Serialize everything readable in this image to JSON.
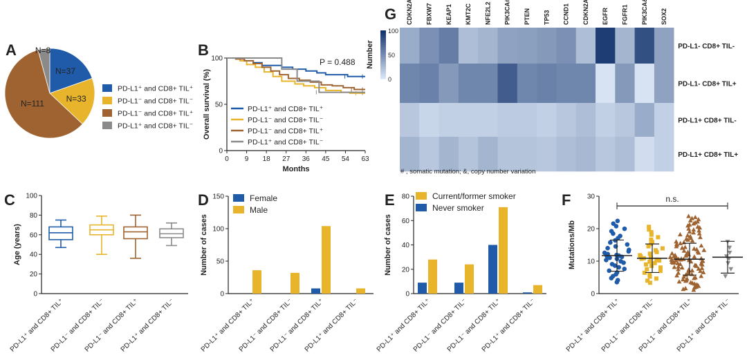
{
  "colors": {
    "blue": "#1f5ba8",
    "yellow": "#e7b42b",
    "brown": "#9e6330",
    "gray": "#8a8a8a"
  },
  "groups": [
    "PD-L1⁺ and CD8+ TIL⁺",
    "PD-L1⁻ and CD8+ TIL⁻",
    "PD-L1⁻ and CD8+ TIL⁺",
    "PD-L1⁺ and CD8+ TIL⁻"
  ],
  "chart_data": [
    {
      "id": "A",
      "type": "pie",
      "label": "A",
      "slices": [
        {
          "name": "PD-L1⁺ and CD8⁺ TIL⁺",
          "value": 37,
          "label": "N=37",
          "color": "#1f5ba8"
        },
        {
          "name": "PD-L1⁻ and CD8⁺ TIL⁻",
          "value": 33,
          "label": "N=33",
          "color": "#e7b42b"
        },
        {
          "name": "PD-L1⁻ and CD8⁺ TIL⁺",
          "value": 111,
          "label": "N=111",
          "color": "#9e6330"
        },
        {
          "name": "PD-L1⁺ and CD8⁺ TIL⁻",
          "value": 8,
          "label": "N=8",
          "color": "#8a8a8a"
        }
      ]
    },
    {
      "id": "B",
      "type": "line",
      "label": "B",
      "title": "",
      "xlabel": "Months",
      "ylabel": "Overall survival (%)",
      "xlim": [
        0,
        63
      ],
      "ylim": [
        0,
        100
      ],
      "xticks": [
        0,
        9,
        18,
        27,
        36,
        45,
        54,
        63
      ],
      "yticks": [
        0,
        50,
        100
      ],
      "annotation": "P = 0.488",
      "series": [
        {
          "name": "PD-L1⁺ and CD8+ TIL⁺",
          "color": "#1f5ba8",
          "x": [
            0,
            5,
            8,
            12,
            16,
            20,
            25,
            30,
            36,
            41,
            45,
            50,
            55,
            63
          ],
          "y": [
            100,
            100,
            97,
            95,
            92,
            92,
            90,
            88,
            86,
            84,
            82,
            82,
            80,
            80
          ]
        },
        {
          "name": "PD-L1⁻ and CD8+ TIL⁻",
          "color": "#e7b42b",
          "x": [
            0,
            6,
            9,
            13,
            17,
            21,
            25,
            31,
            35,
            40,
            45,
            52,
            56,
            60,
            63
          ],
          "y": [
            100,
            97,
            93,
            90,
            85,
            80,
            75,
            72,
            70,
            68,
            65,
            63,
            62,
            62,
            62
          ]
        },
        {
          "name": "PD-L1⁻ and CD8+ TIL⁺",
          "color": "#9e6330",
          "x": [
            0,
            4,
            8,
            12,
            16,
            20,
            24,
            28,
            33,
            38,
            43,
            48,
            53,
            58,
            63
          ],
          "y": [
            100,
            99,
            97,
            94,
            90,
            86,
            82,
            78,
            76,
            74,
            71,
            70,
            68,
            66,
            66
          ]
        },
        {
          "name": "PD-L1⁺ and CD8+ TIL⁻",
          "color": "#8a8a8a",
          "x": [
            0,
            18,
            25,
            25,
            32,
            36,
            42,
            63
          ],
          "y": [
            100,
            100,
            100,
            88,
            75,
            75,
            63,
            63
          ]
        }
      ]
    },
    {
      "id": "G",
      "type": "heatmap",
      "label": "G",
      "genes": [
        "CDKN2A#",
        "FBXW7",
        "KEAP1",
        "KMT2C",
        "NFE2L2",
        "PIK3CA#",
        "PTEN",
        "TP53",
        "CCND1",
        "CDKN2A&",
        "EGFR",
        "FGFR1",
        "PIK3CA&",
        "SOX2"
      ],
      "rows": [
        "PD-L1- CD8+ TIL-",
        "PD-L1- CD8+ TIL+",
        "PD-L1+ CD8+ TIL-",
        "PD-L1+ CD8+ TIL+"
      ],
      "values": [
        [
          35,
          50,
          60,
          25,
          30,
          40,
          42,
          45,
          50,
          25,
          95,
          30,
          85,
          40
        ],
        [
          55,
          58,
          45,
          55,
          55,
          78,
          55,
          58,
          55,
          55,
          5,
          45,
          5,
          40
        ],
        [
          20,
          12,
          15,
          15,
          15,
          18,
          18,
          15,
          20,
          25,
          15,
          20,
          35,
          15
        ],
        [
          30,
          20,
          30,
          22,
          30,
          22,
          22,
          20,
          25,
          28,
          20,
          25,
          8,
          15
        ]
      ],
      "colorbar": {
        "title": "Number",
        "ticks": [
          0,
          50,
          100
        ]
      },
      "note": "# , somatic mutation;    &, copy number variation"
    },
    {
      "id": "C",
      "type": "box",
      "label": "C",
      "ylabel": "Age (years)",
      "ylim": [
        0,
        100
      ],
      "yticks": [
        0,
        20,
        40,
        60,
        80,
        100
      ],
      "boxes": [
        {
          "name": "PD-L1⁺ and CD8+ TIL⁺",
          "min": 47,
          "q1": 55,
          "median": 62,
          "q3": 68,
          "max": 75,
          "color": "#1f5ba8"
        },
        {
          "name": "PD-L1⁻ and CD8+ TIL⁻",
          "min": 40,
          "q1": 60,
          "median": 65,
          "q3": 70,
          "max": 79,
          "color": "#e7b42b"
        },
        {
          "name": "PD-L1⁻ and CD8+ TIL⁺",
          "min": 36,
          "q1": 56,
          "median": 63,
          "q3": 68,
          "max": 80,
          "color": "#9e6330"
        },
        {
          "name": "PD-L1⁺ and CD8+ TIL⁻",
          "min": 49,
          "q1": 57,
          "median": 61,
          "q3": 66,
          "max": 72,
          "color": "#8a8a8a"
        }
      ]
    },
    {
      "id": "D",
      "type": "bar",
      "label": "D",
      "ylabel": "Number of cases",
      "ylim": [
        0,
        150
      ],
      "yticks": [
        0,
        50,
        100,
        150
      ],
      "categories": [
        "PD-L1⁺ and CD8+ TIL⁺",
        "PD-L1⁻ and CD8+ TIL⁻",
        "PD-L1⁻ and CD8+ TIL⁺",
        "PD-L1⁺ and CD8+ TIL⁻"
      ],
      "series": [
        {
          "name": "Female",
          "color": "#1f5ba8",
          "values": [
            0,
            0,
            8,
            0
          ]
        },
        {
          "name": "Male",
          "color": "#e7b42b",
          "values": [
            36,
            32,
            104,
            8
          ]
        }
      ]
    },
    {
      "id": "E",
      "type": "bar",
      "label": "E",
      "ylabel": "Number of cases",
      "ylim": [
        0,
        80
      ],
      "yticks": [
        0,
        20,
        40,
        60,
        80
      ],
      "categories": [
        "PD-L1⁺ and CD8+ TIL⁺",
        "PD-L1⁻ and CD8+ TIL⁻",
        "PD-L1⁻ and CD8+ TIL⁺",
        "PD-L1⁺ and CD8+ TIL⁻"
      ],
      "series": [
        {
          "name": "Never smoker",
          "color": "#1f5ba8",
          "values": [
            9,
            9,
            40,
            1
          ]
        },
        {
          "name": "Current/former smoker",
          "color": "#e7b42b",
          "values": [
            28,
            24,
            71,
            7
          ]
        }
      ],
      "legend_order": [
        "Current/former smoker",
        "Never smoker"
      ]
    },
    {
      "id": "F",
      "type": "scatter",
      "label": "F",
      "ylabel": "Mutations/Mb",
      "ylim": [
        0,
        30
      ],
      "yticks": [
        0,
        10,
        20,
        30
      ],
      "annotation": "n.s.",
      "groups": [
        {
          "name": "PD-L1⁺ and CD8+ TIL⁺",
          "color": "#1f5ba8",
          "marker": "circle",
          "n": 37,
          "mean": 11.7,
          "sd": 4.8,
          "min": 3.2,
          "max": 22.8
        },
        {
          "name": "PD-L1⁻ and CD8+ TIL⁻",
          "color": "#e7b42b",
          "marker": "square",
          "n": 33,
          "mean": 10.9,
          "sd": 4.4,
          "min": 3,
          "max": 21
        },
        {
          "name": "PD-L1⁻ and CD8+ TIL⁺",
          "color": "#9e6330",
          "marker": "triangle-up",
          "n": 111,
          "mean": 10.6,
          "sd": 4.9,
          "min": 1,
          "max": 24
        },
        {
          "name": "PD-L1⁺ and CD8+ TIL⁻",
          "color": "#8a8a8a",
          "marker": "triangle-down",
          "n": 8,
          "mean": 11.2,
          "sd": 4.9,
          "min": 4.2,
          "max": 17
        }
      ]
    }
  ]
}
